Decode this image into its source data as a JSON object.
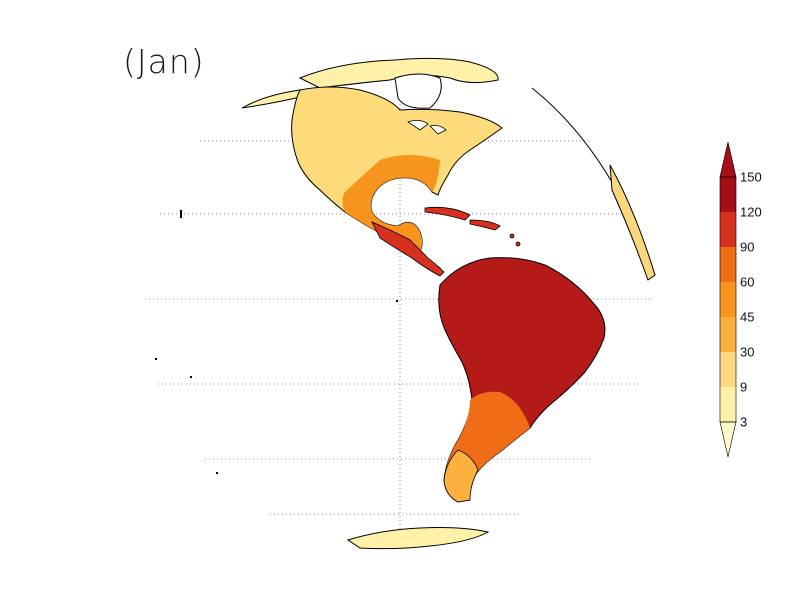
{
  "title": "(Jan)",
  "colorbar": {
    "levels": [
      "150",
      "120",
      "90",
      "60",
      "45",
      "30",
      "9",
      "3"
    ],
    "colors": [
      "#a50f15",
      "#d7301f",
      "#ef6d16",
      "#f7941d",
      "#fbb040",
      "#fdd77d",
      "#fff1a8"
    ],
    "extend": "both"
  },
  "colors": {
    "ocean": "#ffffff",
    "coastline": "#000000",
    "gridline": "#888888"
  }
}
